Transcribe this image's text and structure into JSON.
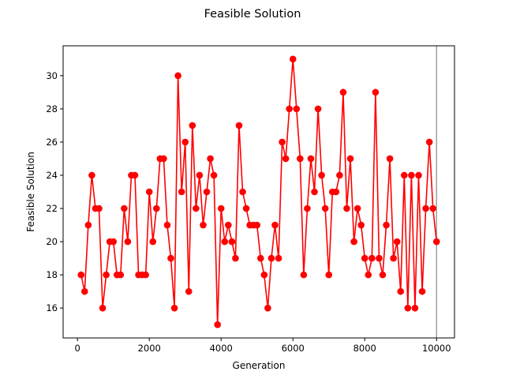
{
  "chart_data": {
    "type": "line",
    "title": "Feasible Solution",
    "xlabel": "Generation",
    "ylabel": "Feasible Solution",
    "xlim": [
      -400,
      10500
    ],
    "ylim": [
      14.2,
      31.8
    ],
    "xticks": [
      0,
      2000,
      4000,
      6000,
      8000,
      10000
    ],
    "yticks": [
      16,
      18,
      20,
      22,
      24,
      26,
      28,
      30
    ],
    "grid": false,
    "legend": "none",
    "reference_line_x": 10000,
    "colors": {
      "series": "#ff0000",
      "reference_line": "#a0a0a0",
      "axes": "#000000"
    },
    "series": [
      {
        "x": [
          100,
          200,
          300,
          400,
          500,
          600,
          700,
          800,
          900,
          1000,
          1100,
          1200,
          1300,
          1400,
          1500,
          1600,
          1700,
          1800,
          1900,
          2000,
          2100,
          2200,
          2300,
          2400,
          2500,
          2600,
          2700,
          2800,
          2900,
          3000,
          3100,
          3200,
          3300,
          3400,
          3500,
          3600,
          3700,
          3800,
          3900,
          4000,
          4100,
          4200,
          4300,
          4400,
          4500,
          4600,
          4700,
          4800,
          4900,
          5000,
          5100,
          5200,
          5300,
          5400,
          5500,
          5600,
          5700,
          5800,
          5900,
          6000,
          6100,
          6200,
          6300,
          6400,
          6500,
          6600,
          6700,
          6800,
          6900,
          7000,
          7100,
          7200,
          7300,
          7400,
          7500,
          7600,
          7700,
          7800,
          7900,
          8000,
          8100,
          8200,
          8300,
          8400,
          8500,
          8600,
          8700,
          8800,
          8900,
          9000,
          9100,
          9200,
          9300,
          9400,
          9500,
          9600,
          9700,
          9800,
          9900,
          10000
        ],
        "values": [
          18,
          17,
          21,
          24,
          22,
          22,
          16,
          18,
          20,
          20,
          18,
          18,
          22,
          20,
          24,
          24,
          18,
          18,
          18,
          23,
          20,
          22,
          25,
          25,
          21,
          19,
          16,
          30,
          23,
          26,
          17,
          27,
          22,
          24,
          21,
          23,
          25,
          24,
          15,
          22,
          20,
          21,
          20,
          19,
          27,
          23,
          22,
          21,
          21,
          21,
          19,
          18,
          16,
          19,
          21,
          19,
          26,
          25,
          28,
          31,
          28,
          25,
          18,
          22,
          25,
          23,
          28,
          24,
          22,
          18,
          23,
          23,
          24,
          29,
          22,
          25,
          20,
          22,
          21,
          19,
          18,
          19,
          29,
          19,
          18,
          21,
          25,
          19,
          20,
          17,
          24,
          16,
          24,
          16,
          24,
          17,
          22,
          26,
          22,
          20
        ]
      }
    ]
  }
}
